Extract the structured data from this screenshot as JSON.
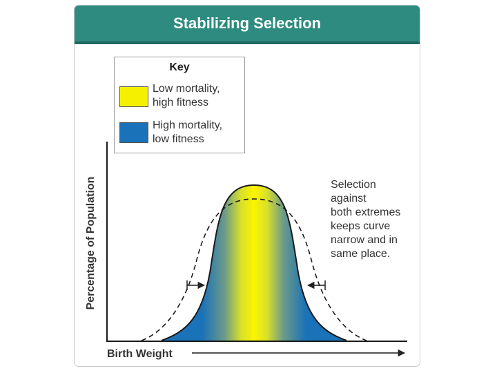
{
  "title": "Stabilizing Selection",
  "key": {
    "heading": "Key",
    "items": [
      {
        "label": "Low mortality, high fitness",
        "line1": "Low mortality,",
        "line2": "high fitness",
        "color": "#f5f000"
      },
      {
        "label": "High mortality, low fitness",
        "line1": "High mortality,",
        "line2": "low fitness",
        "color": "#1a72b8"
      }
    ]
  },
  "annotation": {
    "lines": [
      "Selection",
      "against",
      "both extremes",
      "keeps curve",
      "narrow and in",
      "same place."
    ]
  },
  "axes": {
    "ylabel": "Percentage of Population",
    "xlabel": "Birth Weight"
  },
  "colors": {
    "title_bar": "#2e8b7f",
    "low_mortality": "#f5f000",
    "high_mortality": "#1a72b8"
  }
}
